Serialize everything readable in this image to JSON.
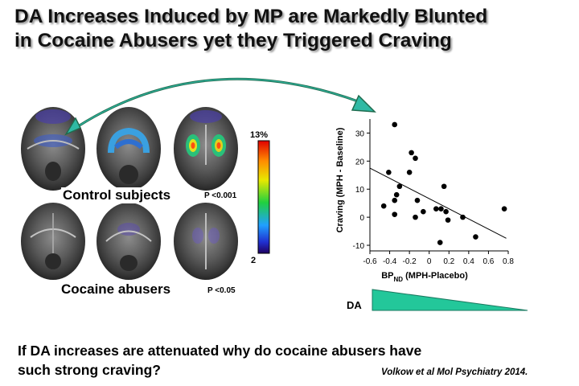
{
  "slide": {
    "title_line1": "DA Increases Induced by MP are Markedly Blunted",
    "title_line2": "in Cocaine Abusers yet they Triggered Craving",
    "control_label": "Control subjects",
    "control_p": "P <0.001",
    "cocaine_label": "Cocaine abusers",
    "cocaine_p": "P <0.05",
    "scale_max": "13%",
    "scale_min": "2",
    "da_label": "DA",
    "question_line1": "If DA increases are attenuated why do cocaine abusers have",
    "question_line2": "such strong craving?",
    "citation": "Volkow et al Mol Psychiatry 2014."
  },
  "colors": {
    "arrow": "#1f6b4e",
    "arrowhead": "#2fb9a4",
    "wedge": "#23c79a"
  },
  "chart_data": {
    "type": "scatter",
    "xlabel_main": "BP",
    "xlabel_sub": "ND",
    "xlabel_rest": " (MPH-Placebo)",
    "ylabel": "Craving (MPH - Baseline)",
    "xlim": [
      -0.6,
      0.8
    ],
    "ylim": [
      -12,
      35
    ],
    "xticks": [
      -0.6,
      -0.4,
      -0.2,
      0,
      0.2,
      0.4,
      0.6,
      0.8
    ],
    "xtick_labels": [
      "-0.6",
      "-0.4",
      "-0.2",
      "0",
      "0.2",
      "0.4",
      "0.6",
      "0.8"
    ],
    "yticks": [
      -10,
      0,
      10,
      20,
      30
    ],
    "ytick_labels": [
      "-10",
      "0",
      "10",
      "20",
      "30"
    ],
    "points": [
      {
        "x": -0.35,
        "y": 33
      },
      {
        "x": -0.18,
        "y": 23
      },
      {
        "x": -0.14,
        "y": 21
      },
      {
        "x": -0.2,
        "y": 16
      },
      {
        "x": -0.41,
        "y": 16
      },
      {
        "x": 0.15,
        "y": 11
      },
      {
        "x": -0.3,
        "y": 11
      },
      {
        "x": -0.33,
        "y": 8
      },
      {
        "x": -0.35,
        "y": 6
      },
      {
        "x": -0.12,
        "y": 6
      },
      {
        "x": -0.46,
        "y": 4
      },
      {
        "x": 0.07,
        "y": 3
      },
      {
        "x": 0.12,
        "y": 3
      },
      {
        "x": -0.06,
        "y": 2
      },
      {
        "x": 0.17,
        "y": 2
      },
      {
        "x": -0.35,
        "y": 1
      },
      {
        "x": -0.14,
        "y": 0
      },
      {
        "x": 0.19,
        "y": -1
      },
      {
        "x": 0.34,
        "y": 0
      },
      {
        "x": 0.47,
        "y": -7
      },
      {
        "x": 0.11,
        "y": -9
      },
      {
        "x": 0.76,
        "y": 3
      }
    ],
    "trend": {
      "x1": -0.6,
      "y1": 17.5,
      "x2": 0.78,
      "y2": -7.5
    }
  }
}
